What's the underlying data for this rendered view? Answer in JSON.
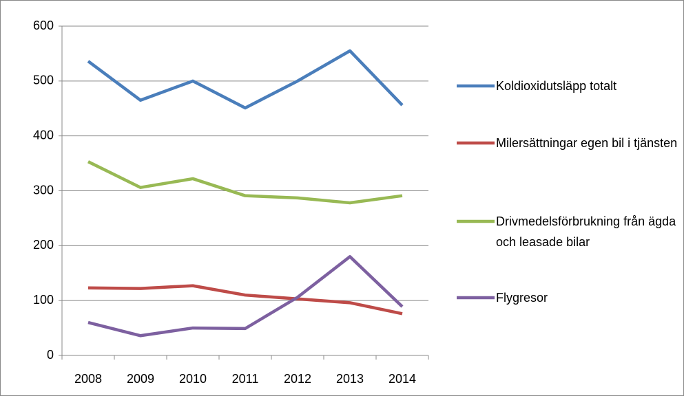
{
  "chart_data": {
    "type": "line",
    "categories": [
      "2008",
      "2009",
      "2010",
      "2011",
      "2012",
      "2013",
      "2014"
    ],
    "series": [
      {
        "name": "Koldioxidutsläpp totalt",
        "color": "#4a7ebb",
        "values": [
          536,
          465,
          500,
          451,
          500,
          555,
          456
        ]
      },
      {
        "name": "Milersättningar egen bil i tjänsten",
        "color": "#be4b48",
        "values": [
          123,
          122,
          127,
          110,
          103,
          96,
          76
        ]
      },
      {
        "name": "Drivmedelsförbrukning från ägda och leasade bilar",
        "color": "#98b954",
        "values": [
          353,
          306,
          322,
          291,
          287,
          278,
          291
        ]
      },
      {
        "name": "Flygresor",
        "color": "#7d60a0",
        "values": [
          60,
          36,
          50,
          49,
          106,
          180,
          89
        ]
      }
    ],
    "ylim": [
      0,
      600
    ],
    "yticks": [
      0,
      100,
      200,
      300,
      400,
      500,
      600
    ],
    "grid": true,
    "legend": "right"
  }
}
